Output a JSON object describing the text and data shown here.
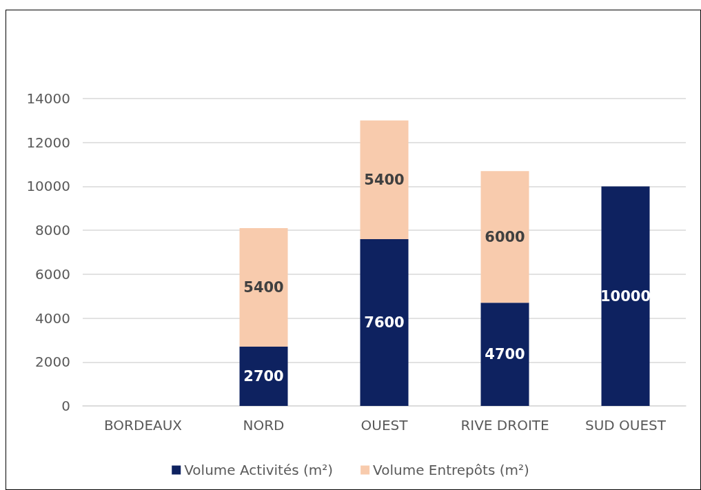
{
  "chart_data": {
    "type": "bar",
    "stacked": true,
    "categories": [
      "BORDEAUX",
      "NORD",
      "OUEST",
      "RIVE DROITE",
      "SUD OUEST"
    ],
    "series": [
      {
        "name": "Volume Activités (m²)",
        "color": "#0e2260",
        "values": [
          null,
          2700,
          7600,
          4700,
          10000
        ]
      },
      {
        "name": "Volume Entrepôts (m²)",
        "color": "#f8cbad",
        "values": [
          null,
          5400,
          5400,
          6000,
          null
        ]
      }
    ],
    "ylim": [
      0,
      14000
    ],
    "yticks": [
      0,
      2000,
      4000,
      6000,
      8000,
      10000,
      12000,
      14000
    ],
    "grid": "y",
    "legend": "bottom",
    "data_labels": true
  }
}
